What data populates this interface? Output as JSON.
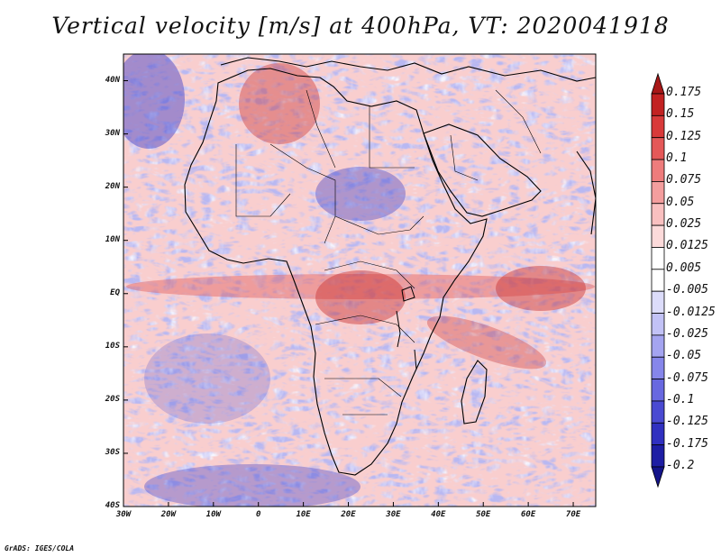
{
  "title": "Vertical velocity [m/s] at 400hPa, VT: 2020041918",
  "credit": "GrADS: IGES/COLA",
  "map": {
    "lon_range": [
      -30,
      75
    ],
    "lat_range": [
      -40,
      45
    ],
    "lon_ticks": [
      "30W",
      "20W",
      "10W",
      "0",
      "10E",
      "20E",
      "30E",
      "40E",
      "50E",
      "60E",
      "70E"
    ],
    "lon_tick_values": [
      -30,
      -20,
      -10,
      0,
      10,
      20,
      30,
      40,
      50,
      60,
      70
    ],
    "lat_ticks": [
      "40N",
      "30N",
      "20N",
      "10N",
      "EQ",
      "10S",
      "20S",
      "30S",
      "40S"
    ],
    "lat_tick_values": [
      40,
      30,
      20,
      10,
      0,
      -10,
      -20,
      -30,
      -40
    ]
  },
  "colorbar": {
    "labels": [
      "0.175",
      "0.15",
      "0.125",
      "0.1",
      "0.075",
      "0.05",
      "0.025",
      "0.0125",
      "0.005",
      "-0.005",
      "-0.0125",
      "-0.025",
      "-0.05",
      "-0.075",
      "-0.1",
      "-0.125",
      "-0.175",
      "-0.2"
    ],
    "colors": [
      "#a81818",
      "#c22222",
      "#d83a3a",
      "#e45858",
      "#ee7c7c",
      "#f49e9e",
      "#f9c0c0",
      "#fcdada",
      "#ffffff",
      "#ffffff",
      "#dcdcfa",
      "#c2c2f6",
      "#a4a4f0",
      "#8686ea",
      "#6868e0",
      "#4a4ad2",
      "#3030c0",
      "#1e1ea4",
      "#14148a"
    ]
  },
  "colors": {
    "positive": "#d83a3a",
    "negative": "#4a4ad2",
    "neutral": "#ffffff"
  }
}
